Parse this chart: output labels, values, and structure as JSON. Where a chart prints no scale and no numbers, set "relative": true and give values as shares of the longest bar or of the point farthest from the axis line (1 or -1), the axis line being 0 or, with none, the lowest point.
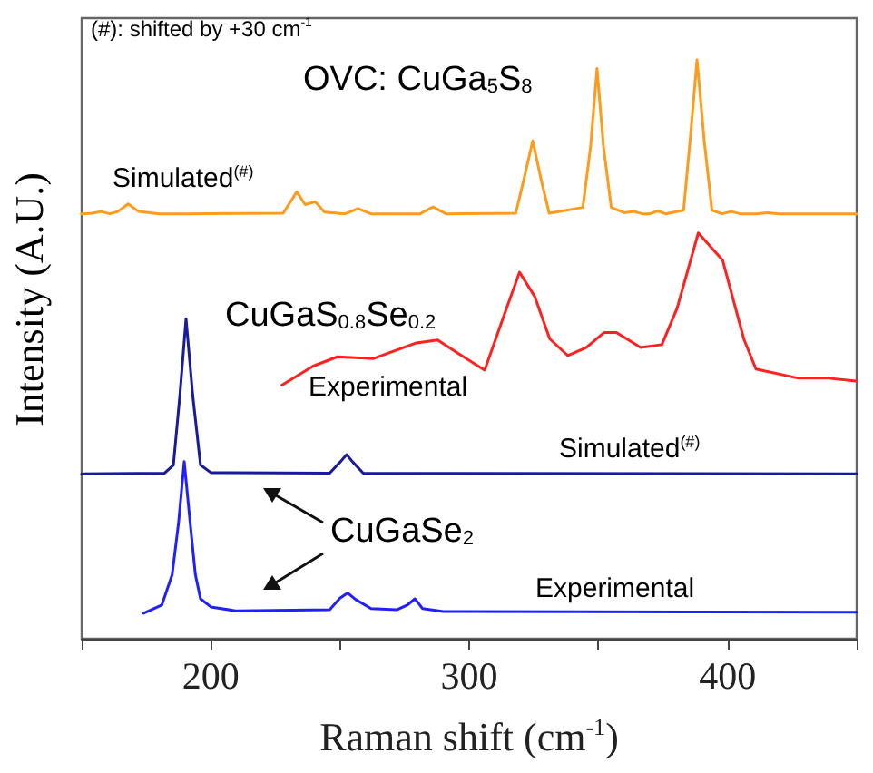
{
  "chart_data": {
    "type": "line",
    "relative": true,
    "xlabel": "Raman shift (cm$^{-1}$)",
    "ylabel": "Intensity (A.U.)",
    "xlim": [
      150,
      450
    ],
    "xticks": [
      {
        "value": 150,
        "label": null
      },
      200,
      {
        "value": 250,
        "label": null
      },
      300,
      {
        "value": 350,
        "label": null
      },
      400,
      {
        "value": 450,
        "label": null
      }
    ],
    "tick_labels": "x",
    "marker": "none",
    "line_style": "solid",
    "annotations": [
      "(#): shifted by +30 cm$^{-1}$",
      "OVC: CuGa$_{5}$S$_{8}$",
      "CuGaS$_{0.8}$Se$_{0.2}$",
      "CuGaSe$_{2}$"
    ],
    "series": [
      {
        "name": "Simulated$^{(#)}$",
        "color": "#ff9a1a",
        "x": [
          150,
          154,
          157.5,
          161,
          164,
          168,
          172,
          180,
          190,
          228,
          233.3,
          236.5,
          240.4,
          244,
          252,
          257,
          262,
          281,
          286,
          291,
          318,
          321,
          324.6,
          328,
          331,
          344,
          347,
          349.5,
          352,
          355,
          360,
          364,
          367,
          370,
          373,
          376,
          383,
          385.5,
          388.2,
          391,
          394,
          398,
          401.4,
          405,
          411,
          415.5,
          420,
          450
        ],
        "values": [
          0.734,
          0.735,
          0.738,
          0.734,
          0.738,
          0.751,
          0.738,
          0.734,
          0.734,
          0.735,
          0.772,
          0.75,
          0.755,
          0.737,
          0.734,
          0.743,
          0.734,
          0.734,
          0.746,
          0.734,
          0.735,
          0.79,
          0.86,
          0.79,
          0.735,
          0.745,
          0.85,
          0.985,
          0.85,
          0.745,
          0.736,
          0.738,
          0.734,
          0.734,
          0.739,
          0.734,
          0.74,
          0.86,
          1.0,
          0.86,
          0.74,
          0.734,
          0.738,
          0.734,
          0.734,
          0.736,
          0.734,
          0.734
        ]
      },
      {
        "name": "Experimental",
        "color": "#ff2020",
        "x": [
          227.5,
          239.6,
          249,
          263,
          279.6,
          287.8,
          296,
          306,
          313.6,
          319.5,
          325.4,
          331.2,
          338.2,
          345.3,
          352.3,
          357,
          366.4,
          374.6,
          380.5,
          388.7,
          398.1,
          406.3,
          411,
          427.5,
          439.2,
          449.8
        ],
        "values": [
          0.438,
          0.471,
          0.487,
          0.484,
          0.511,
          0.516,
          0.492,
          0.464,
          0.56,
          0.633,
          0.591,
          0.518,
          0.489,
          0.503,
          0.529,
          0.529,
          0.503,
          0.508,
          0.571,
          0.701,
          0.654,
          0.518,
          0.466,
          0.45,
          0.45,
          0.445
        ]
      },
      {
        "name": "Simulated$^{(#)}$",
        "color": "#1a1a9c",
        "x": [
          150,
          182,
          185.5,
          188,
          190.4,
          193,
          196,
          200,
          246,
          250,
          252.6,
          255,
          259,
          450
        ],
        "values": [
          0.285,
          0.286,
          0.3,
          0.42,
          0.553,
          0.42,
          0.3,
          0.287,
          0.286,
          0.305,
          0.318,
          0.305,
          0.286,
          0.285
        ]
      },
      {
        "name": "Experimental",
        "color": "#2020ff",
        "x": [
          174,
          181,
          185,
          187.5,
          189.7,
          192,
          194,
          196,
          200,
          210,
          246,
          250,
          253,
          256,
          262,
          272,
          276,
          279,
          282,
          290,
          450
        ],
        "values": [
          0.044,
          0.058,
          0.11,
          0.2,
          0.306,
          0.2,
          0.111,
          0.069,
          0.055,
          0.048,
          0.05,
          0.07,
          0.079,
          0.068,
          0.052,
          0.05,
          0.058,
          0.069,
          0.052,
          0.047,
          0.046
        ]
      }
    ]
  }
}
